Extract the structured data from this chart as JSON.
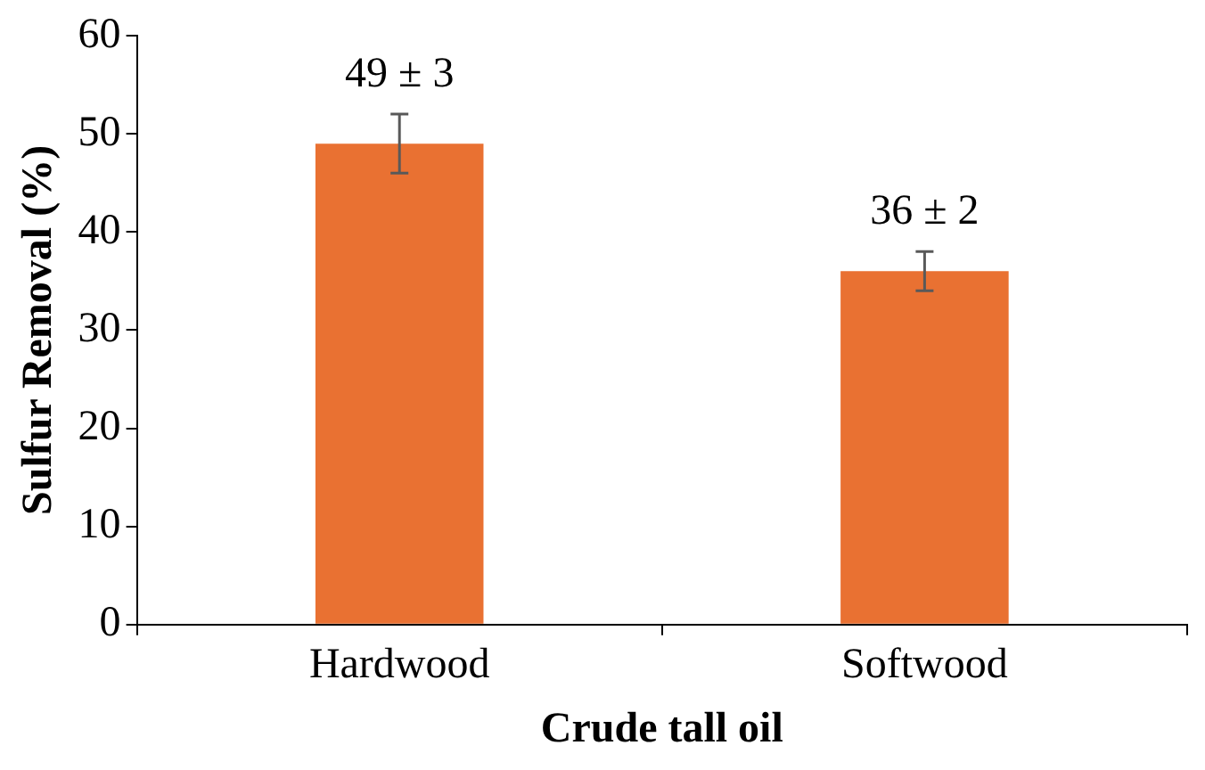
{
  "chart_data": {
    "type": "bar",
    "xlabel": "Crude tall oil",
    "ylabel": "Sulfur Removal (%)",
    "categories": [
      "Hardwood",
      "Softwood"
    ],
    "values": [
      49,
      36
    ],
    "errors": [
      3,
      2
    ],
    "value_labels": [
      "49 ± 3",
      "36 ± 2"
    ],
    "color": "#e97132",
    "ylim": [
      0,
      60
    ],
    "yticks": [
      0,
      10,
      20,
      30,
      40,
      50,
      60
    ],
    "grid": false,
    "legend": false
  }
}
